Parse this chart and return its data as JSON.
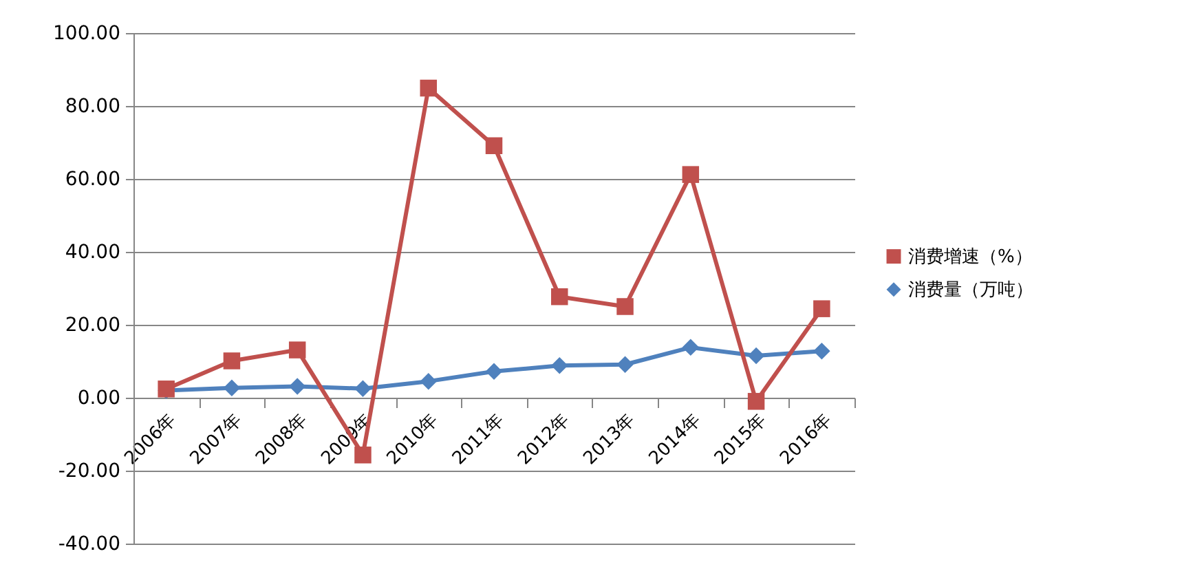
{
  "chart_data": {
    "type": "line",
    "categories": [
      "2006年",
      "2007年",
      "2008年",
      "2009年",
      "2010年",
      "2011年",
      "2012年",
      "2013年",
      "2014年",
      "2015年",
      "2016年"
    ],
    "series": [
      {
        "name": "消费增速（%）",
        "color": "#c0504d",
        "marker": "square",
        "values": [
          2.4,
          10.1,
          13.1,
          -15.7,
          84.9,
          69.1,
          27.7,
          25.0,
          61.2,
          -1.0,
          24.4
        ]
      },
      {
        "name": "消费量（万吨）",
        "color": "#4f81bd",
        "marker": "diamond",
        "values": [
          2.0,
          2.7,
          3.1,
          2.5,
          4.5,
          7.2,
          8.8,
          9.1,
          13.8,
          11.5,
          12.8
        ]
      }
    ],
    "ylim": [
      -40,
      100
    ],
    "yticks": [
      {
        "value": -40,
        "label": "-40.00"
      },
      {
        "value": -20,
        "label": "-20.00"
      },
      {
        "value": 0,
        "label": "0.00"
      },
      {
        "value": 20,
        "label": "20.00"
      },
      {
        "value": 40,
        "label": "40.00"
      },
      {
        "value": 60,
        "label": "60.00"
      },
      {
        "value": 80,
        "label": "80.00"
      },
      {
        "value": 100,
        "label": "100.00"
      }
    ],
    "grid": "y",
    "legend": "right",
    "line_style": "solid"
  }
}
